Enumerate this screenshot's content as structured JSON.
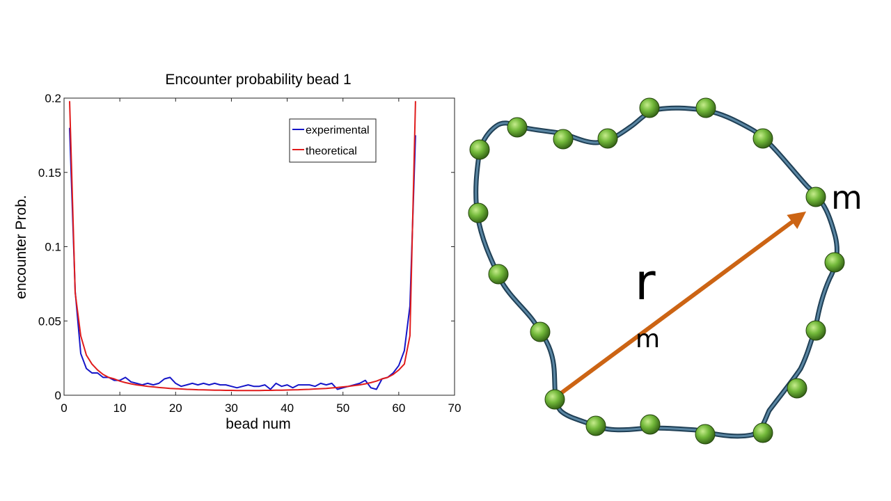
{
  "chart_data": {
    "type": "line",
    "title": "Encounter probability bead 1",
    "xlabel": "bead num",
    "ylabel": "encounter Prob.",
    "xlim": [
      0,
      70
    ],
    "ylim": [
      0,
      0.2
    ],
    "xticks": [
      "0",
      "10",
      "20",
      "30",
      "40",
      "50",
      "60",
      "70"
    ],
    "yticks": [
      "0",
      "0.05",
      "0.1",
      "0.15",
      "0.2"
    ],
    "legend_position": "top-right",
    "series": [
      {
        "name": "experimental",
        "color": "#1515c8",
        "x": [
          1,
          2,
          3,
          4,
          5,
          6,
          7,
          8,
          9,
          10,
          11,
          12,
          13,
          14,
          15,
          16,
          17,
          18,
          19,
          20,
          21,
          22,
          23,
          24,
          25,
          26,
          27,
          28,
          29,
          30,
          31,
          32,
          33,
          34,
          35,
          36,
          37,
          38,
          39,
          40,
          41,
          42,
          43,
          44,
          45,
          46,
          47,
          48,
          49,
          50,
          51,
          52,
          53,
          54,
          55,
          56,
          57,
          58,
          59,
          60,
          61,
          62,
          63
        ],
        "values": [
          0.18,
          0.07,
          0.028,
          0.018,
          0.015,
          0.015,
          0.012,
          0.012,
          0.01,
          0.01,
          0.012,
          0.009,
          0.008,
          0.007,
          0.008,
          0.007,
          0.008,
          0.011,
          0.012,
          0.008,
          0.006,
          0.007,
          0.008,
          0.007,
          0.008,
          0.007,
          0.008,
          0.007,
          0.007,
          0.006,
          0.005,
          0.006,
          0.007,
          0.006,
          0.006,
          0.007,
          0.004,
          0.008,
          0.006,
          0.007,
          0.005,
          0.007,
          0.007,
          0.007,
          0.006,
          0.008,
          0.007,
          0.008,
          0.004,
          0.005,
          0.006,
          0.007,
          0.008,
          0.01,
          0.005,
          0.004,
          0.011,
          0.012,
          0.015,
          0.02,
          0.03,
          0.06,
          0.175
        ]
      },
      {
        "name": "theoretical",
        "color": "#e01b1b",
        "x": [
          1,
          2,
          3,
          4,
          5,
          6,
          7,
          8,
          9,
          10,
          11,
          12,
          13,
          14,
          15,
          16,
          17,
          18,
          19,
          20,
          21,
          22,
          23,
          24,
          25,
          26,
          27,
          28,
          29,
          30,
          31,
          32,
          33,
          34,
          35,
          36,
          37,
          38,
          39,
          40,
          41,
          42,
          43,
          44,
          45,
          46,
          47,
          48,
          49,
          50,
          51,
          52,
          53,
          54,
          55,
          56,
          57,
          58,
          59,
          60,
          61,
          62,
          63
        ],
        "values": [
          0.198,
          0.069,
          0.04,
          0.027,
          0.021,
          0.017,
          0.014,
          0.012,
          0.011,
          0.0095,
          0.0085,
          0.0077,
          0.007,
          0.0065,
          0.006,
          0.0056,
          0.0052,
          0.0049,
          0.0046,
          0.0044,
          0.0042,
          0.004,
          0.0039,
          0.0037,
          0.0036,
          0.0035,
          0.0034,
          0.0034,
          0.0033,
          0.0033,
          0.0032,
          0.0032,
          0.0032,
          0.0032,
          0.0032,
          0.0033,
          0.0033,
          0.0034,
          0.0034,
          0.0035,
          0.0036,
          0.0037,
          0.0039,
          0.004,
          0.0042,
          0.0044,
          0.0046,
          0.0049,
          0.0052,
          0.0056,
          0.006,
          0.0065,
          0.007,
          0.0077,
          0.0085,
          0.0095,
          0.011,
          0.012,
          0.014,
          0.017,
          0.021,
          0.04,
          0.198
        ]
      }
    ]
  },
  "diagram": {
    "arrow_label_main": "r",
    "arrow_label_sub": "m",
    "endpoint_label": "m",
    "polymer_color": "#3d6680",
    "bead_color": "#6fb33a",
    "arrow_color": "#cc6414"
  }
}
